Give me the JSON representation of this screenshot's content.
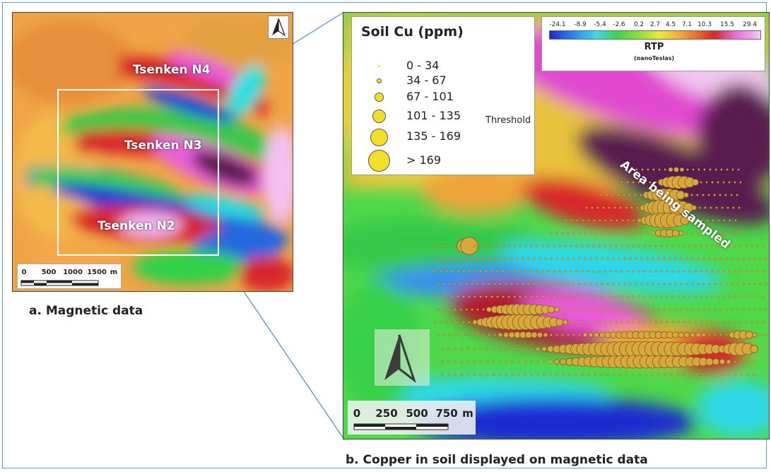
{
  "panel_a": {
    "labels": {
      "n4": "Tsenken N4",
      "n3": "Tsenken N3",
      "n2": "Tsenken N2"
    },
    "scale": {
      "ticks": [
        "0",
        "500",
        "1000",
        "1500",
        "m"
      ]
    },
    "caption": "a. Magnetic data"
  },
  "panel_b": {
    "legend": {
      "title": "Soil Cu (ppm)",
      "classes": [
        "0 - 34",
        "34 - 67",
        "67 - 101",
        "101 - 135",
        "135 - 169",
        "> 169"
      ],
      "threshold": "Threshold",
      "symbol_color": "#f3df2a"
    },
    "rtp": {
      "ticks": [
        "-24.1",
        "-8.9",
        "-5.4",
        "-2.6",
        "0.2",
        "2.7",
        "4.5",
        "7.1",
        "10.3",
        "15.5",
        "29.4"
      ],
      "title": "RTP",
      "unit": "(nanoTeslas)"
    },
    "annotation": "Area being sampled",
    "scale": {
      "ticks": [
        "0",
        "250",
        "500",
        "750",
        "m"
      ]
    },
    "caption": "b. Copper in soil displayed on magnetic data"
  },
  "colors": {
    "frame": "#5b9bd5",
    "connector": "#5b8fd0",
    "sample_box": "#ffffff"
  }
}
